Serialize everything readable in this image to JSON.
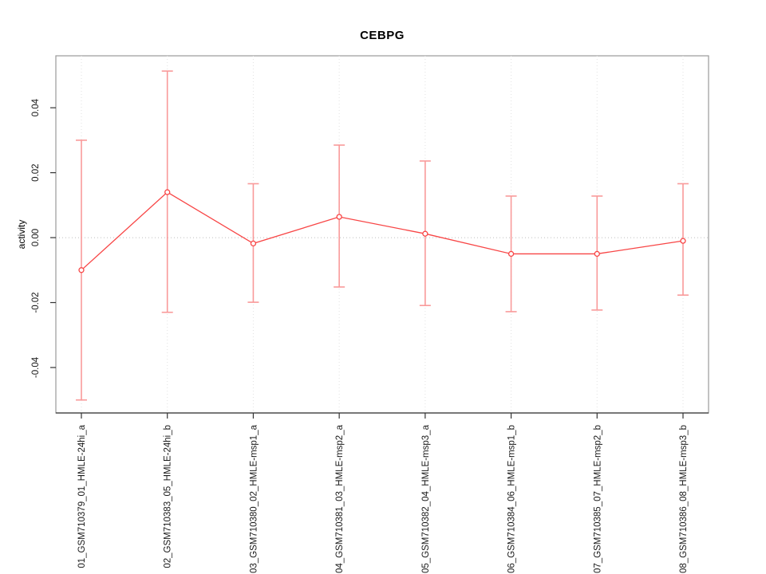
{
  "figure": {
    "title": "CEBPG",
    "ylabel": "activity"
  },
  "colors": {
    "series_line": "#f84545",
    "marker_stroke": "#f84545",
    "marker_fill": "#ffffff",
    "error_bar": "#f99a9a",
    "grid_vertical": "#e2e2e2",
    "zero_line": "#bdbdbd",
    "box_border": "#999999",
    "axis_line": "#333333",
    "tick_mark": "#333333",
    "tick_text": "#1a1a1a"
  },
  "chart_data": {
    "type": "line",
    "title": "CEBPG",
    "xlabel": "",
    "ylabel": "activity",
    "categories": [
      "01_GSM710379_01_HMLE-24hi_a",
      "02_GSM710383_05_HMLE-24hi_b",
      "03_GSM710380_02_HMLE-msp1_a",
      "04_GSM710381_03_HMLE-msp2_a",
      "05_GSM710382_04_HMLE-msp3_a",
      "06_GSM710384_06_HMLE-msp1_b",
      "07_GSM710385_07_HMLE-msp2_b",
      "08_GSM710386_08_HMLE-msp3_b"
    ],
    "series": [
      {
        "name": "activity",
        "marker": "open-circle",
        "values": [
          -0.01,
          0.014,
          -0.0018,
          0.0064,
          0.0012,
          -0.005,
          -0.005,
          -0.001
        ],
        "upper": [
          0.03,
          0.0513,
          0.0166,
          0.0285,
          0.0236,
          0.0128,
          0.0128,
          0.0166
        ],
        "lower": [
          -0.05,
          -0.023,
          -0.0199,
          -0.0152,
          -0.0209,
          -0.0228,
          -0.0223,
          -0.0177
        ]
      }
    ],
    "yticks": [
      0.04,
      0.02,
      0.0,
      -0.02,
      -0.04
    ],
    "ytick_labels": [
      "0.04",
      "0.02",
      "0.00",
      "-0.02",
      "-0.04"
    ],
    "ylim": [
      -0.054,
      0.056
    ],
    "grid": "dotted vertical line at each category; dotted horizontal line at y=0",
    "legend": "none"
  }
}
